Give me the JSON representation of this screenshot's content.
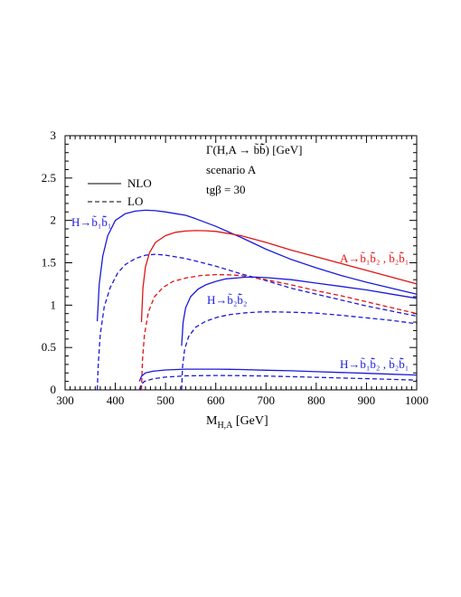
{
  "chart_data": {
    "type": "line",
    "xlabel_main": "M",
    "xlabel_sub": "H,A",
    "xlabel_unit": " [GeV]",
    "xlim": [
      300,
      1000
    ],
    "ylim": [
      0,
      3
    ],
    "xticks": [
      300,
      400,
      500,
      600,
      700,
      800,
      900,
      1000
    ],
    "yticks": [
      0,
      0.5,
      1,
      1.5,
      2,
      2.5,
      3
    ],
    "grid": false,
    "legend": {
      "position": "top-left",
      "entries": [
        {
          "label": "NLO",
          "style": "solid"
        },
        {
          "label": "LO",
          "style": "dashed"
        }
      ]
    },
    "info": {
      "title": "Γ(H,A → b̃b̃̄) [GeV]",
      "scenario": "scenario A",
      "tanb": "tgβ = 30"
    },
    "annotations": {
      "h_b1b1": "H→b̃₁b̃̄₁",
      "h_b2b2": "H→b̃₂b̃̄₂",
      "h_mixed": "H→b̃₁b̃̄₂ , b̃₂b̃̄₁",
      "a_mixed": "A→b̃₁b̃̄₂ , b̃₂b̃̄₁"
    },
    "colors": {
      "blue": "#1a1adc",
      "red": "#e01414",
      "black": "#000000"
    },
    "series": [
      {
        "id": "h_b1b1_nlo",
        "color": "blue",
        "dash": false,
        "x": [
          364,
          368,
          375,
          385,
          400,
          420,
          440,
          460,
          480,
          500,
          520,
          540,
          560,
          600,
          650,
          700,
          750,
          800,
          850,
          900,
          950,
          1000
        ],
        "y": [
          0.81,
          1.25,
          1.58,
          1.82,
          2.0,
          2.08,
          2.11,
          2.12,
          2.115,
          2.1,
          2.08,
          2.06,
          2.02,
          1.93,
          1.8,
          1.66,
          1.54,
          1.44,
          1.35,
          1.27,
          1.2,
          1.13
        ]
      },
      {
        "id": "h_b1b1_lo",
        "color": "blue",
        "dash": true,
        "x": [
          364,
          366,
          370,
          378,
          390,
          405,
          420,
          440,
          460,
          480,
          500,
          540,
          600,
          650,
          700,
          750,
          800,
          850,
          900,
          950,
          1000
        ],
        "y": [
          0.0,
          0.3,
          0.65,
          0.98,
          1.21,
          1.38,
          1.48,
          1.55,
          1.59,
          1.6,
          1.59,
          1.55,
          1.46,
          1.37,
          1.29,
          1.2,
          1.13,
          1.06,
          0.99,
          0.93,
          0.87
        ]
      },
      {
        "id": "a_mixed_nlo",
        "color": "red",
        "dash": false,
        "x": [
          452,
          455,
          460,
          468,
          480,
          500,
          520,
          540,
          560,
          580,
          600,
          650,
          700,
          750,
          800,
          850,
          900,
          950,
          1000
        ],
        "y": [
          0.8,
          1.2,
          1.45,
          1.62,
          1.74,
          1.82,
          1.86,
          1.875,
          1.88,
          1.878,
          1.87,
          1.82,
          1.74,
          1.65,
          1.57,
          1.49,
          1.41,
          1.33,
          1.25
        ]
      },
      {
        "id": "a_mixed_lo",
        "color": "red",
        "dash": true,
        "x": [
          452,
          454,
          458,
          466,
          478,
          495,
          515,
          540,
          570,
          600,
          625,
          650,
          700,
          750,
          800,
          850,
          900,
          950,
          1000
        ],
        "y": [
          0.0,
          0.35,
          0.65,
          0.92,
          1.1,
          1.21,
          1.28,
          1.32,
          1.35,
          1.36,
          1.358,
          1.35,
          1.3,
          1.24,
          1.17,
          1.11,
          1.04,
          0.97,
          0.9
        ]
      },
      {
        "id": "h_b2b2_nlo",
        "color": "blue",
        "dash": false,
        "x": [
          532,
          535,
          540,
          550,
          565,
          580,
          600,
          620,
          640,
          660,
          680,
          700,
          750,
          800,
          850,
          900,
          950,
          1000
        ],
        "y": [
          0.52,
          0.8,
          0.97,
          1.1,
          1.19,
          1.24,
          1.28,
          1.31,
          1.32,
          1.33,
          1.33,
          1.325,
          1.3,
          1.26,
          1.22,
          1.18,
          1.13,
          1.08
        ]
      },
      {
        "id": "h_b2b2_lo",
        "color": "blue",
        "dash": true,
        "x": [
          532,
          534,
          538,
          546,
          560,
          580,
          605,
          630,
          660,
          690,
          720,
          760,
          800,
          850,
          900,
          950,
          1000
        ],
        "y": [
          0.0,
          0.28,
          0.48,
          0.63,
          0.74,
          0.81,
          0.86,
          0.89,
          0.91,
          0.92,
          0.92,
          0.915,
          0.905,
          0.88,
          0.85,
          0.82,
          0.78
        ]
      },
      {
        "id": "h_mixed_nlo",
        "color": "blue",
        "dash": false,
        "x": [
          448,
          452,
          460,
          475,
          500,
          540,
          600,
          650,
          700,
          750,
          800,
          850,
          900,
          950,
          1000
        ],
        "y": [
          0.1,
          0.16,
          0.2,
          0.22,
          0.235,
          0.245,
          0.245,
          0.24,
          0.232,
          0.225,
          0.215,
          0.205,
          0.195,
          0.185,
          0.175
        ]
      },
      {
        "id": "h_mixed_lo",
        "color": "blue",
        "dash": true,
        "x": [
          448,
          451,
          458,
          475,
          500,
          540,
          600,
          650,
          700,
          750,
          800,
          850,
          900,
          950,
          1000
        ],
        "y": [
          0.0,
          0.06,
          0.1,
          0.13,
          0.15,
          0.165,
          0.17,
          0.168,
          0.163,
          0.156,
          0.148,
          0.14,
          0.132,
          0.124,
          0.115
        ]
      }
    ]
  }
}
